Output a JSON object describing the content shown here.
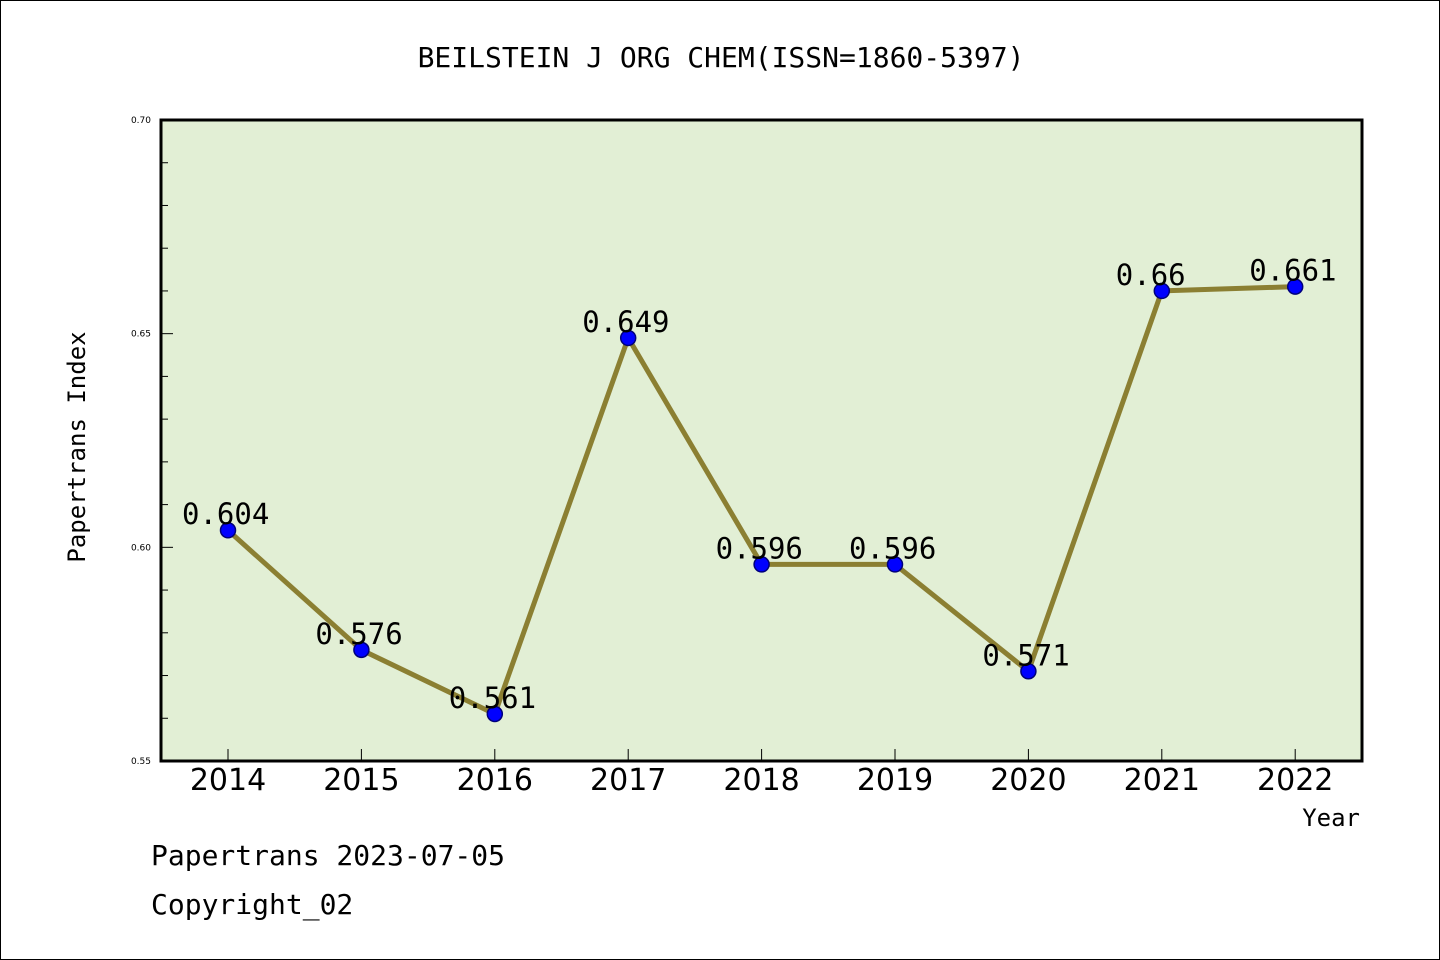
{
  "chart_data": {
    "type": "line",
    "title": "BEILSTEIN J ORG CHEM(ISSN=1860-5397)",
    "xlabel": "Year",
    "ylabel": "Papertrans Index",
    "categories": [
      "2014",
      "2015",
      "2016",
      "2017",
      "2018",
      "2019",
      "2020",
      "2021",
      "2022"
    ],
    "series": [
      {
        "values": [
          0.604,
          0.576,
          0.561,
          0.649,
          0.596,
          0.596,
          0.571,
          0.66,
          0.661
        ],
        "labels": [
          "0.604",
          "0.576",
          "0.561",
          "0.649",
          "0.596",
          "0.596",
          "0.571",
          "0.66",
          "0.661"
        ]
      }
    ],
    "ylim": [
      0.55,
      0.7
    ],
    "yticks": [
      0.55,
      0.6,
      0.65,
      0.7
    ],
    "ytick_labels": [
      "0.55",
      "0.60",
      "0.65",
      "0.70"
    ],
    "y_minor_step": 0.01,
    "grid": false,
    "colors": {
      "plot_background": "#e2efd5",
      "line": "#8b7f32",
      "marker": "#0000ff",
      "marker_edge": "#00007a"
    }
  },
  "footer": {
    "date_line": "Papertrans 2023-07-05",
    "copyright": "Copyright_02"
  }
}
